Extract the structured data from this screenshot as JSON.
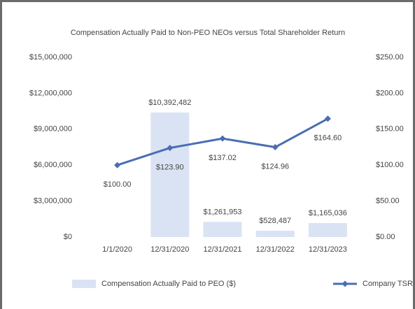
{
  "chart_data": {
    "type": "combo",
    "title": "Compensation Actually Paid to Non-PEO NEOs versus Total Shareholder Return",
    "categories": [
      "1/1/2020",
      "12/31/2020",
      "12/31/2021",
      "12/31/2022",
      "12/31/2023"
    ],
    "series": [
      {
        "name": "Compensation Actually Paid to PEO ($)",
        "type": "bar",
        "color": "#dae3f3",
        "values": [
          null,
          10392482,
          1261953,
          528487,
          1165036
        ],
        "value_labels": [
          null,
          "$10,392,482",
          "$1,261,953",
          "$528,487",
          "$1,165,036"
        ]
      },
      {
        "name": "Company TSR",
        "type": "line",
        "axis": "y2",
        "color": "#4a6db4",
        "values": [
          100,
          123.9,
          137.02,
          124.96,
          164.6
        ],
        "value_labels": [
          "$100.00",
          "$123.90",
          "$137.02",
          "$124.96",
          "$164.60"
        ]
      }
    ],
    "ylim": [
      0,
      15000000
    ],
    "yticks": [
      {
        "value": 0,
        "label": "$0"
      },
      {
        "value": 3000000,
        "label": "$3,000,000"
      },
      {
        "value": 6000000,
        "label": "$6,000,000"
      },
      {
        "value": 9000000,
        "label": "$9,000,000"
      },
      {
        "value": 12000000,
        "label": "$12,000,000"
      },
      {
        "value": 15000000,
        "label": "$15,000,000"
      }
    ],
    "y2lim": [
      0,
      250
    ],
    "y2ticks": [
      {
        "value": 0,
        "label": "$0.00"
      },
      {
        "value": 50,
        "label": "$50.00"
      },
      {
        "value": 100,
        "label": "$100.00"
      },
      {
        "value": 150,
        "label": "$150.00"
      },
      {
        "value": 200,
        "label": "$200.00"
      },
      {
        "value": 250,
        "label": "$250.00"
      }
    ],
    "grid": false,
    "legend": "bottom"
  }
}
